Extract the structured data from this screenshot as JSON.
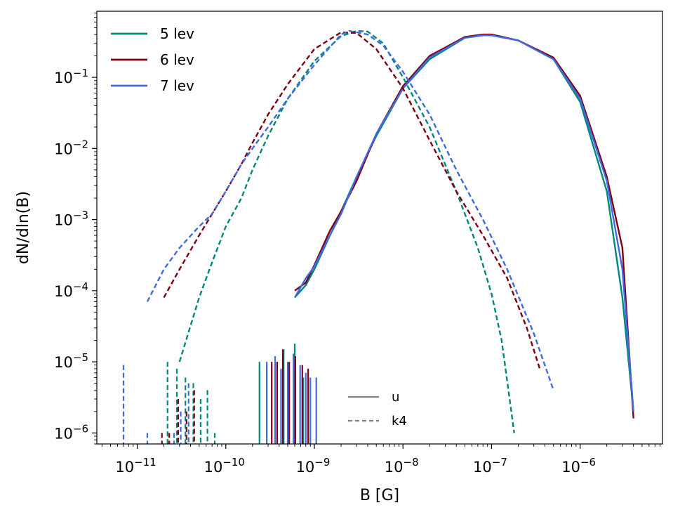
{
  "chart_data": {
    "type": "line",
    "xlabel": "B [G]",
    "ylabel": "dN/dln(B)",
    "xscale": "log",
    "yscale": "log",
    "xlim": [
      3.5e-12,
      8.5e-06
    ],
    "ylim": [
      7e-07,
      0.85
    ],
    "x_ticks": [
      {
        "value": 1e-11,
        "base": "10",
        "exp": "−11"
      },
      {
        "value": 1e-10,
        "base": "10",
        "exp": "−10"
      },
      {
        "value": 1e-09,
        "base": "10",
        "exp": "−9"
      },
      {
        "value": 1e-08,
        "base": "10",
        "exp": "−8"
      },
      {
        "value": 1e-07,
        "base": "10",
        "exp": "−7"
      },
      {
        "value": 1e-06,
        "base": "10",
        "exp": "−6"
      }
    ],
    "y_ticks": [
      {
        "value": 1e-06,
        "base": "10",
        "exp": "−6"
      },
      {
        "value": 1e-05,
        "base": "10",
        "exp": "−5"
      },
      {
        "value": 0.0001,
        "base": "10",
        "exp": "−4"
      },
      {
        "value": 0.001,
        "base": "10",
        "exp": "−3"
      },
      {
        "value": 0.01,
        "base": "10",
        "exp": "−2"
      },
      {
        "value": 0.1,
        "base": "10",
        "exp": "−1"
      }
    ],
    "legend_levels": {
      "placement": "top-left",
      "entries": [
        {
          "label": "5 lev",
          "color": "#00897b"
        },
        {
          "label": "6 lev",
          "color": "#800010"
        },
        {
          "label": "7 lev",
          "color": "#4169e1"
        }
      ]
    },
    "legend_styles": {
      "placement": "bottom-center",
      "entries": [
        {
          "label": "u",
          "style": "solid",
          "color": "#808080"
        },
        {
          "label": "k4",
          "style": "dashed",
          "color": "#808080"
        }
      ]
    },
    "series": [
      {
        "name": "5 lev u",
        "level": "5 lev",
        "style": "solid",
        "color": "#00897b",
        "x": [
          6e-10,
          8e-10,
          1e-09,
          1.5e-09,
          2e-09,
          3e-09,
          5e-09,
          1e-08,
          2e-08,
          5e-08,
          8e-08,
          1e-07,
          2e-07,
          5e-07,
          1e-06,
          2e-06,
          3e-06,
          4e-06
        ],
        "y": [
          8e-05,
          0.00012,
          0.0002,
          0.0006,
          0.0013,
          0.004,
          0.015,
          0.07,
          0.18,
          0.36,
          0.39,
          0.39,
          0.33,
          0.18,
          0.045,
          0.0025,
          8e-05,
          2e-06
        ]
      },
      {
        "name": "6 lev u",
        "level": "6 lev",
        "style": "solid",
        "color": "#800010",
        "x": [
          6e-10,
          8e-10,
          1e-09,
          1.5e-09,
          2e-09,
          3e-09,
          5e-09,
          1e-08,
          2e-08,
          5e-08,
          8e-08,
          1e-07,
          2e-07,
          5e-07,
          1e-06,
          2e-06,
          3e-06,
          4e-06
        ],
        "y": [
          0.0001,
          0.00013,
          0.00023,
          0.0007,
          0.0013,
          0.0035,
          0.016,
          0.075,
          0.2,
          0.37,
          0.4,
          0.4,
          0.33,
          0.19,
          0.055,
          0.004,
          0.0004,
          1.6e-06
        ]
      },
      {
        "name": "7 lev u",
        "level": "7 lev",
        "style": "solid",
        "color": "#4169e1",
        "x": [
          6e-10,
          8e-10,
          1e-09,
          1.5e-09,
          2e-09,
          3e-09,
          5e-09,
          1e-08,
          2e-08,
          5e-08,
          8e-08,
          1e-07,
          2e-07,
          5e-07,
          1e-06,
          2e-06,
          3e-06,
          4e-06
        ],
        "y": [
          8e-05,
          0.00015,
          0.00022,
          0.0006,
          0.0012,
          0.004,
          0.016,
          0.07,
          0.19,
          0.36,
          0.39,
          0.39,
          0.33,
          0.18,
          0.05,
          0.0035,
          0.0002,
          2e-06
        ]
      },
      {
        "name": "5 lev k4",
        "level": "5 lev",
        "style": "dashed",
        "color": "#00897b",
        "x": [
          3e-11,
          5e-11,
          7e-11,
          1e-10,
          1.5e-10,
          2e-10,
          3e-10,
          5e-10,
          1e-09,
          2e-09,
          3e-09,
          4e-09,
          6e-09,
          1e-08,
          2e-08,
          4e-08,
          7e-08,
          1e-07,
          1.3e-07,
          1.6e-07,
          1.8e-07
        ],
        "y": [
          1e-05,
          8e-05,
          0.00025,
          0.0008,
          0.002,
          0.005,
          0.015,
          0.05,
          0.17,
          0.38,
          0.45,
          0.44,
          0.3,
          0.1,
          0.02,
          0.0025,
          0.0004,
          9e-05,
          2e-05,
          3e-06,
          1e-06
        ]
      },
      {
        "name": "6 lev k4",
        "level": "6 lev",
        "style": "dashed",
        "color": "#800010",
        "x": [
          2e-11,
          3e-11,
          5e-11,
          7e-11,
          1e-10,
          1.5e-10,
          2e-10,
          3e-10,
          5e-10,
          1e-09,
          2e-09,
          3e-09,
          5e-09,
          1e-08,
          2e-08,
          4e-08,
          8e-08,
          1.5e-07,
          2.5e-07,
          3.5e-07
        ],
        "y": [
          8e-05,
          0.0002,
          0.0006,
          0.0012,
          0.0025,
          0.006,
          0.012,
          0.03,
          0.08,
          0.25,
          0.43,
          0.42,
          0.25,
          0.07,
          0.013,
          0.0025,
          0.0006,
          0.00015,
          3e-05,
          8e-06
        ]
      },
      {
        "name": "7 lev k4",
        "level": "7 lev",
        "style": "dashed",
        "color": "#4169e1",
        "x": [
          1.3e-11,
          2e-11,
          3e-11,
          5e-11,
          7e-11,
          1e-10,
          1.5e-10,
          2e-10,
          3e-10,
          5e-10,
          1e-09,
          2e-09,
          2.5e-09,
          4e-09,
          6e-09,
          1e-08,
          2e-08,
          4e-08,
          8e-08,
          1.5e-07,
          3e-07,
          5e-07
        ],
        "y": [
          7e-05,
          0.0002,
          0.0004,
          0.0008,
          0.0012,
          0.0025,
          0.006,
          0.01,
          0.02,
          0.05,
          0.15,
          0.4,
          0.45,
          0.4,
          0.28,
          0.12,
          0.03,
          0.005,
          0.001,
          0.0002,
          2.5e-05,
          4e-06
        ]
      }
    ],
    "noise": [
      {
        "name": "5 lev u noise",
        "color": "#00897b",
        "style": "solid",
        "x": [
          2.4e-10,
          3.8e-10,
          4.5e-10,
          6e-10,
          7.5e-10
        ],
        "y": [
          1e-05,
          1e-05,
          1.5e-05,
          1.8e-05,
          6e-06
        ]
      },
      {
        "name": "6 lev u noise",
        "color": "#800010",
        "style": "solid",
        "x": [
          3.3e-10,
          3.8e-10,
          4.4e-10,
          5.2e-10,
          6.1e-10,
          7.3e-10,
          8.5e-10
        ],
        "y": [
          1e-05,
          1e-05,
          1.5e-05,
          1e-05,
          1.2e-05,
          9e-06,
          8e-06
        ]
      },
      {
        "name": "7 lev u noise",
        "color": "#4169e1",
        "style": "solid",
        "x": [
          2.9e-10,
          3.6e-10,
          4.2e-10,
          5e-10,
          5.8e-10,
          6.9e-10,
          8e-10,
          9e-10,
          1.05e-09
        ],
        "y": [
          1e-05,
          1.2e-05,
          8e-06,
          1e-05,
          1.3e-05,
          9e-06,
          7e-06,
          6e-06,
          6e-06
        ]
      },
      {
        "name": "5 lev k4 noise",
        "color": "#00897b",
        "style": "dashed",
        "x": [
          2.2e-11,
          2.8e-11,
          3.5e-11,
          4.3e-11,
          5.2e-11,
          6.2e-11,
          7.5e-11
        ],
        "y": [
          1e-05,
          8e-06,
          6e-06,
          5e-06,
          3e-06,
          4e-06,
          1e-06
        ]
      },
      {
        "name": "6 lev k4 noise",
        "color": "#800010",
        "style": "dashed",
        "x": [
          1.9e-11,
          2.3e-11,
          2.9e-11,
          3.6e-11,
          4.4e-11
        ],
        "y": [
          1e-06,
          1e-06,
          3e-06,
          2e-06,
          4e-06
        ]
      },
      {
        "name": "7 lev k4 noise",
        "color": "#4169e1",
        "style": "dashed",
        "x": [
          7e-12,
          1.3e-11,
          2.6e-11,
          3.1e-11,
          3.8e-11
        ],
        "y": [
          9e-06,
          1e-06,
          1e-06,
          2e-06,
          5e-06
        ]
      }
    ]
  }
}
